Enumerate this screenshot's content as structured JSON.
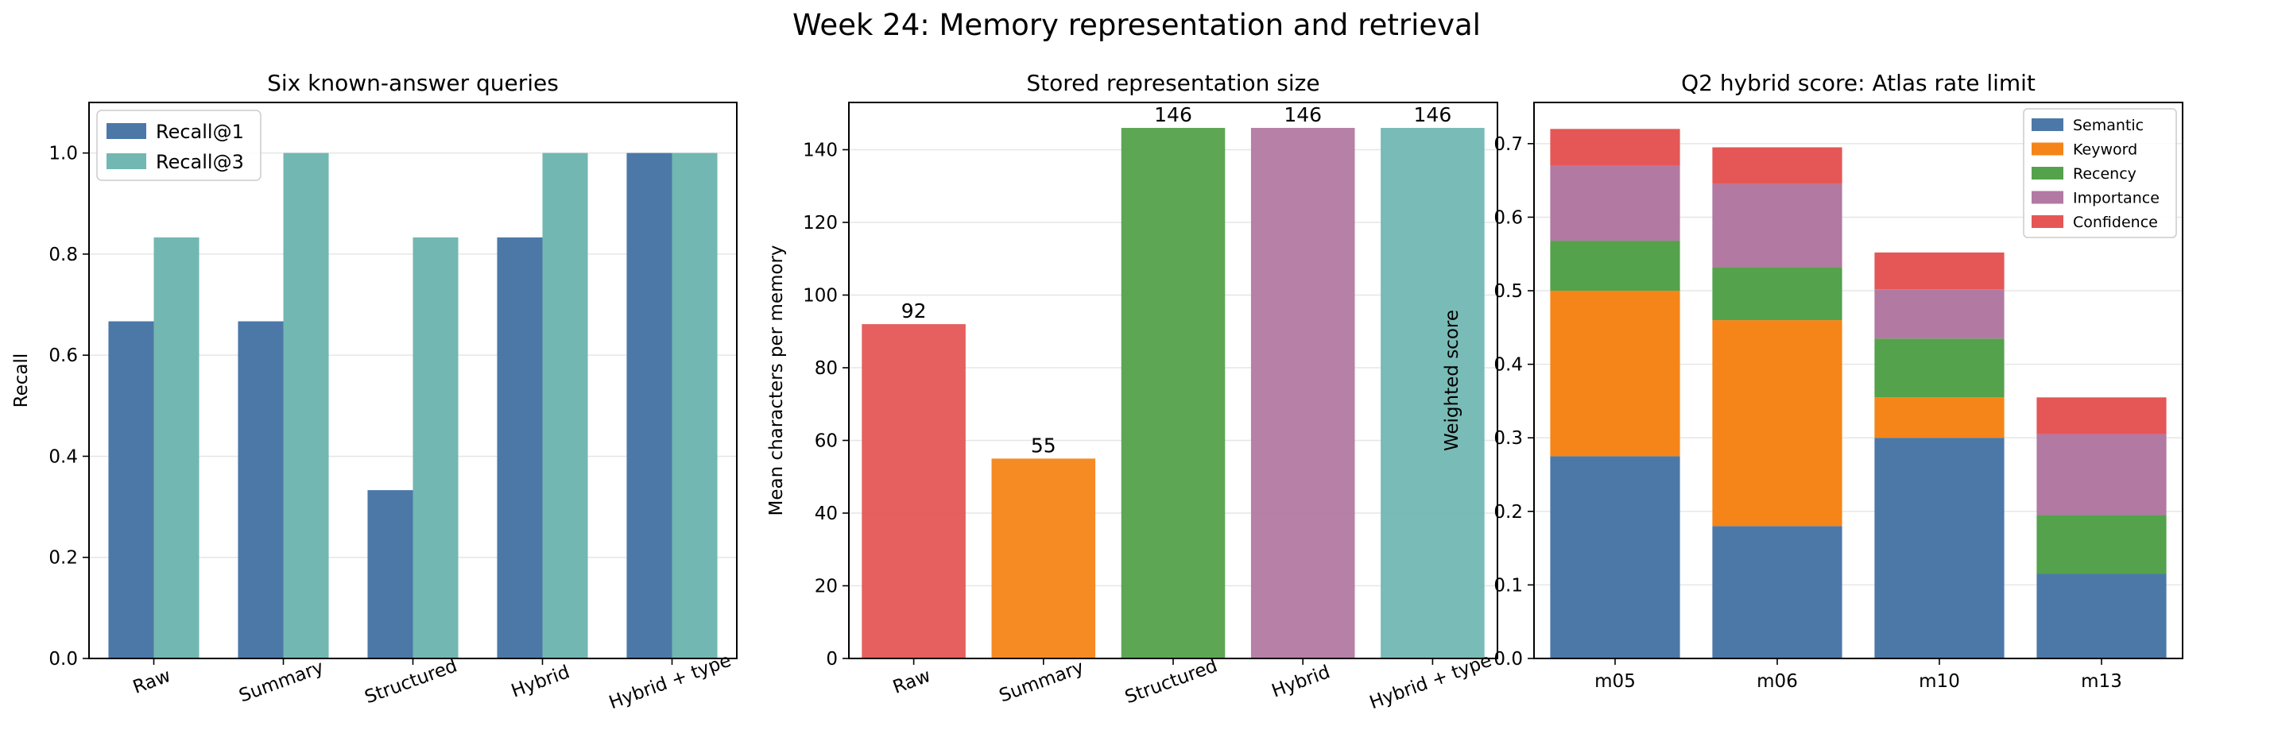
{
  "figure": {
    "title": "Week 24: Memory representation and retrieval"
  },
  "colors": {
    "blue": "#4c78a8",
    "teal": "#72b7b2",
    "red": "#e45756",
    "orange": "#f58518",
    "green": "#54a24b",
    "purple": "#b279a2",
    "grid": "#e6e6e6"
  },
  "chart_data": [
    {
      "type": "bar",
      "title": "Six known-answer queries",
      "xlabel": "",
      "ylabel": "Recall",
      "categories": [
        "Raw",
        "Summary",
        "Structured",
        "Hybrid",
        "Hybrid + type"
      ],
      "series": [
        {
          "name": "Recall@1",
          "color": "#4c78a8",
          "values": [
            0.667,
            0.667,
            0.333,
            0.833,
            1.0
          ]
        },
        {
          "name": "Recall@3",
          "color": "#72b7b2",
          "values": [
            0.833,
            1.0,
            0.833,
            1.0,
            1.0
          ]
        }
      ],
      "ylim": [
        0,
        1.1
      ],
      "yticks": [
        "0.0",
        "0.2",
        "0.4",
        "0.6",
        "0.8",
        "1.0"
      ],
      "grid": "horizontal",
      "legend": "top-left"
    },
    {
      "type": "bar",
      "title": "Stored representation size",
      "xlabel": "",
      "ylabel": "Mean characters per memory",
      "categories": [
        "Raw",
        "Summary",
        "Structured",
        "Hybrid",
        "Hybrid + type"
      ],
      "values": [
        92,
        55,
        146,
        146,
        146
      ],
      "data_labels": [
        "92",
        "55",
        "146",
        "146",
        "146"
      ],
      "bar_colors": [
        "#e45756",
        "#f58518",
        "#54a24b",
        "#b279a2",
        "#72b7b2"
      ],
      "ylim": [
        0,
        153
      ],
      "yticks": [
        "0",
        "20",
        "40",
        "60",
        "80",
        "100",
        "120",
        "140"
      ],
      "grid": "horizontal"
    },
    {
      "type": "bar",
      "stacked": true,
      "title": "Q2 hybrid score: Atlas rate limit",
      "xlabel": "",
      "ylabel": "Weighted score",
      "categories": [
        "m05",
        "m06",
        "m10",
        "m13"
      ],
      "series": [
        {
          "name": "Semantic",
          "color": "#4c78a8",
          "values": [
            0.275,
            0.18,
            0.3,
            0.115
          ]
        },
        {
          "name": "Keyword",
          "color": "#f58518",
          "values": [
            0.225,
            0.28,
            0.055,
            0.0
          ]
        },
        {
          "name": "Recency",
          "color": "#54a24b",
          "values": [
            0.068,
            0.072,
            0.08,
            0.08
          ]
        },
        {
          "name": "Importance",
          "color": "#b279a2",
          "values": [
            0.102,
            0.113,
            0.067,
            0.11
          ]
        },
        {
          "name": "Confidence",
          "color": "#e45756",
          "values": [
            0.05,
            0.05,
            0.05,
            0.05
          ]
        }
      ],
      "ylim": [
        0,
        0.756
      ],
      "yticks": [
        "0.0",
        "0.1",
        "0.2",
        "0.3",
        "0.4",
        "0.5",
        "0.6",
        "0.7"
      ],
      "grid": "horizontal",
      "legend": "top-right"
    }
  ]
}
